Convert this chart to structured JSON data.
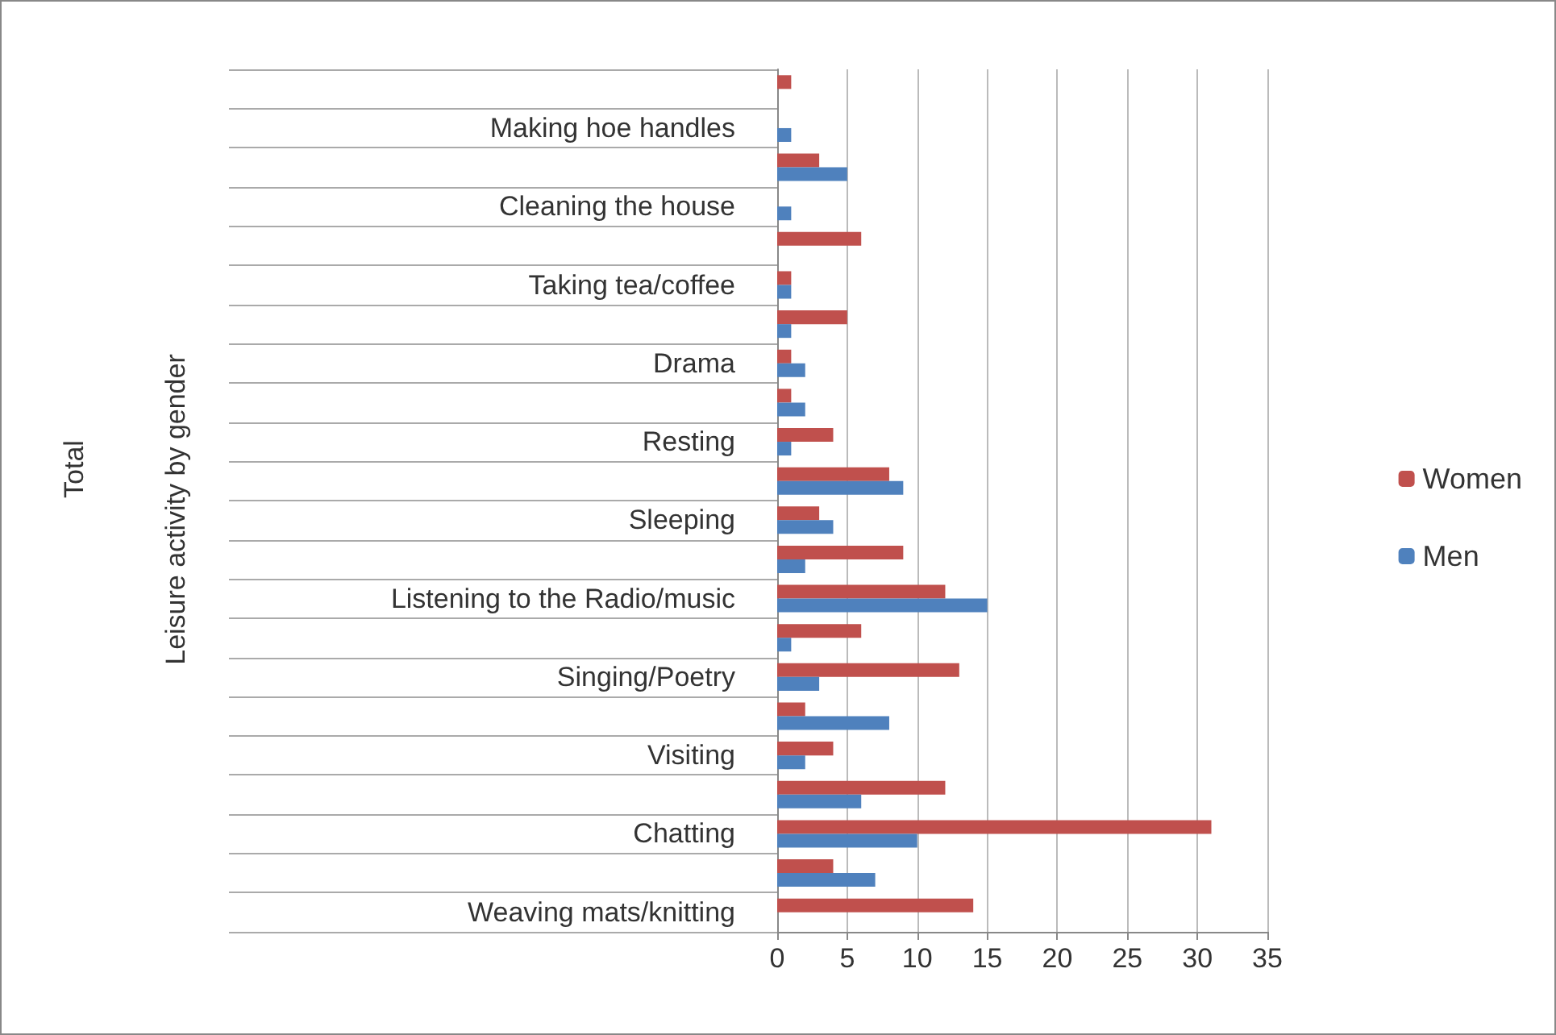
{
  "chart_data": {
    "type": "bar",
    "orientation": "horizontal",
    "annotations": [
      "Total",
      "Leisure activity by gender"
    ],
    "categories": [
      null,
      "Making hoe handles",
      null,
      "Cleaning the house",
      null,
      "Taking tea/coffee",
      null,
      "Drama",
      null,
      "Resting",
      null,
      "Sleeping",
      null,
      "Listening to the Radio/music",
      null,
      "Singing/Poetry",
      null,
      "Visiting",
      null,
      "Chatting",
      null,
      "Weaving mats/knitting"
    ],
    "series": [
      {
        "name": "Women",
        "color": "#c0504d",
        "values": [
          1,
          0,
          3,
          0,
          6,
          1,
          5,
          1,
          1,
          4,
          8,
          3,
          9,
          12,
          6,
          13,
          2,
          4,
          12,
          31,
          4,
          14
        ]
      },
      {
        "name": "Men",
        "color": "#4f81bd",
        "values": [
          0,
          1,
          5,
          1,
          0,
          1,
          1,
          2,
          2,
          1,
          9,
          4,
          2,
          15,
          1,
          3,
          8,
          2,
          6,
          10,
          7,
          0
        ]
      }
    ],
    "xlim": [
      0,
      35
    ],
    "xticks": [
      0,
      5,
      10,
      15,
      20,
      25,
      30,
      35
    ],
    "grid": "x",
    "legend": "right"
  }
}
